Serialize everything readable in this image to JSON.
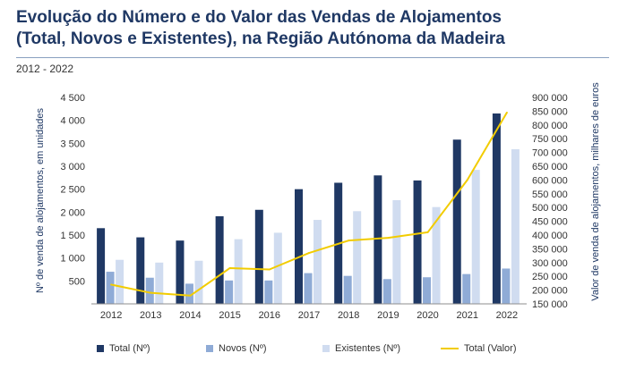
{
  "header": {
    "title_line1": "Evolução do Número e do Valor das Vendas de Alojamentos",
    "title_line2": "(Total, Novos e Existentes), na Região Autónoma da Madeira",
    "period": "2012 - 2022"
  },
  "chart_data": {
    "type": "bar",
    "categories": [
      "2012",
      "2013",
      "2014",
      "2015",
      "2016",
      "2017",
      "2018",
      "2019",
      "2020",
      "2021",
      "2022"
    ],
    "series": [
      {
        "name": "Total (Nº)",
        "type": "bar",
        "axis": "left",
        "color": "#1f3864",
        "values": [
          1650,
          1450,
          1380,
          1910,
          2050,
          2500,
          2640,
          2800,
          2690,
          3580,
          4150
        ]
      },
      {
        "name": "Novos (Nº)",
        "type": "bar",
        "axis": "left",
        "color": "#8fabd6",
        "values": [
          700,
          570,
          440,
          510,
          510,
          670,
          610,
          540,
          580,
          650,
          770
        ]
      },
      {
        "name": "Existentes (Nº)",
        "type": "bar",
        "axis": "left",
        "color": "#d0dcf0",
        "values": [
          960,
          900,
          940,
          1410,
          1550,
          1830,
          2020,
          2260,
          2110,
          2920,
          3370
        ]
      },
      {
        "name": "Total (Valor)",
        "type": "line",
        "axis": "right",
        "color": "#f2cc00",
        "values": [
          220000,
          190000,
          180000,
          280000,
          275000,
          335000,
          380000,
          390000,
          410000,
          600000,
          845000
        ]
      }
    ],
    "ylabel": "Nº de venda de alojamentos, em unidades",
    "y2label": "Valor de venda de alojamentos, milhares de euros",
    "ylim": [
      0,
      4500
    ],
    "y2lim": [
      150000,
      900000
    ],
    "yticks": [
      {
        "value": 500,
        "label": "500"
      },
      {
        "value": 1000,
        "label": "1 000"
      },
      {
        "value": 1500,
        "label": "1 500"
      },
      {
        "value": 2000,
        "label": "2 000"
      },
      {
        "value": 2500,
        "label": "2 500"
      },
      {
        "value": 3000,
        "label": "3 000"
      },
      {
        "value": 3500,
        "label": "3 500"
      },
      {
        "value": 4000,
        "label": "4 000"
      },
      {
        "value": 4500,
        "label": "4 500"
      }
    ],
    "y2ticks": [
      {
        "value": 150000,
        "label": "150 000"
      },
      {
        "value": 200000,
        "label": "200 000"
      },
      {
        "value": 250000,
        "label": "250 000"
      },
      {
        "value": 300000,
        "label": "300 000"
      },
      {
        "value": 350000,
        "label": "350 000"
      },
      {
        "value": 400000,
        "label": "400 000"
      },
      {
        "value": 450000,
        "label": "450 000"
      },
      {
        "value": 500000,
        "label": "500 000"
      },
      {
        "value": 550000,
        "label": "550 000"
      },
      {
        "value": 600000,
        "label": "600 000"
      },
      {
        "value": 650000,
        "label": "650 000"
      },
      {
        "value": 700000,
        "label": "700 000"
      },
      {
        "value": 750000,
        "label": "750 000"
      },
      {
        "value": 800000,
        "label": "800 000"
      },
      {
        "value": 850000,
        "label": "850 000"
      },
      {
        "value": 900000,
        "label": "900 000"
      }
    ],
    "grid": false,
    "legend_position": "bottom"
  }
}
